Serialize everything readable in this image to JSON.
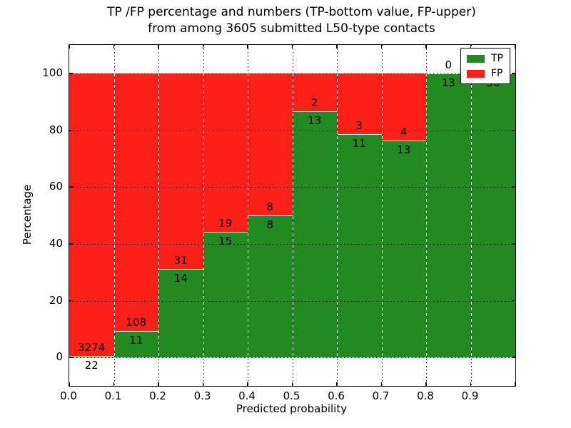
{
  "figure": {
    "title_line1": "TP /FP percentage and numbers (TP-bottom value, FP-upper)",
    "title_line2": "from among 3605 submitted L50-type contacts",
    "xlabel": "Predicted probability",
    "ylabel": "Percentage"
  },
  "legend": {
    "tp_label": "TP",
    "fp_label": "FP"
  },
  "colors": {
    "tp": "#218a21",
    "fp": "#fb2017",
    "grid": "#000000",
    "background": "#ffffff"
  },
  "chart_data": {
    "type": "bar",
    "stacked": true,
    "normalized": "percent",
    "title": "TP /FP percentage and numbers (TP-bottom value, FP-upper) from among 3605 submitted L50-type contacts",
    "xlabel": "Predicted probability",
    "ylabel": "Percentage",
    "total_contacts": 3605,
    "categories": [
      "0.0-0.1",
      "0.1-0.2",
      "0.2-0.3",
      "0.3-0.4",
      "0.4-0.5",
      "0.5-0.6",
      "0.6-0.7",
      "0.7-0.8",
      "0.8-0.9",
      "0.9-1.0"
    ],
    "x_tick_labels": [
      "0.0",
      "0.1",
      "0.2",
      "0.3",
      "0.4",
      "0.5",
      "0.6",
      "0.7",
      "0.8",
      "0.9"
    ],
    "y_tick_labels": [
      "0",
      "20",
      "40",
      "60",
      "80",
      "100"
    ],
    "y_ticks": [
      0,
      20,
      40,
      60,
      80,
      100
    ],
    "xlim": [
      0.0,
      1.0
    ],
    "ylim": [
      -10,
      110
    ],
    "bin_width": 0.1,
    "grid": true,
    "legend_position": "upper right",
    "series": [
      {
        "name": "TP",
        "values": [
          22,
          11,
          14,
          15,
          8,
          13,
          11,
          13,
          13,
          36
        ]
      },
      {
        "name": "FP",
        "values": [
          3274,
          108,
          31,
          19,
          8,
          2,
          3,
          4,
          0,
          0
        ]
      }
    ],
    "tp_percent": [
      0.7,
      9.2,
      31.1,
      44.1,
      50.0,
      86.7,
      78.6,
      76.5,
      100.0,
      100.0
    ]
  }
}
